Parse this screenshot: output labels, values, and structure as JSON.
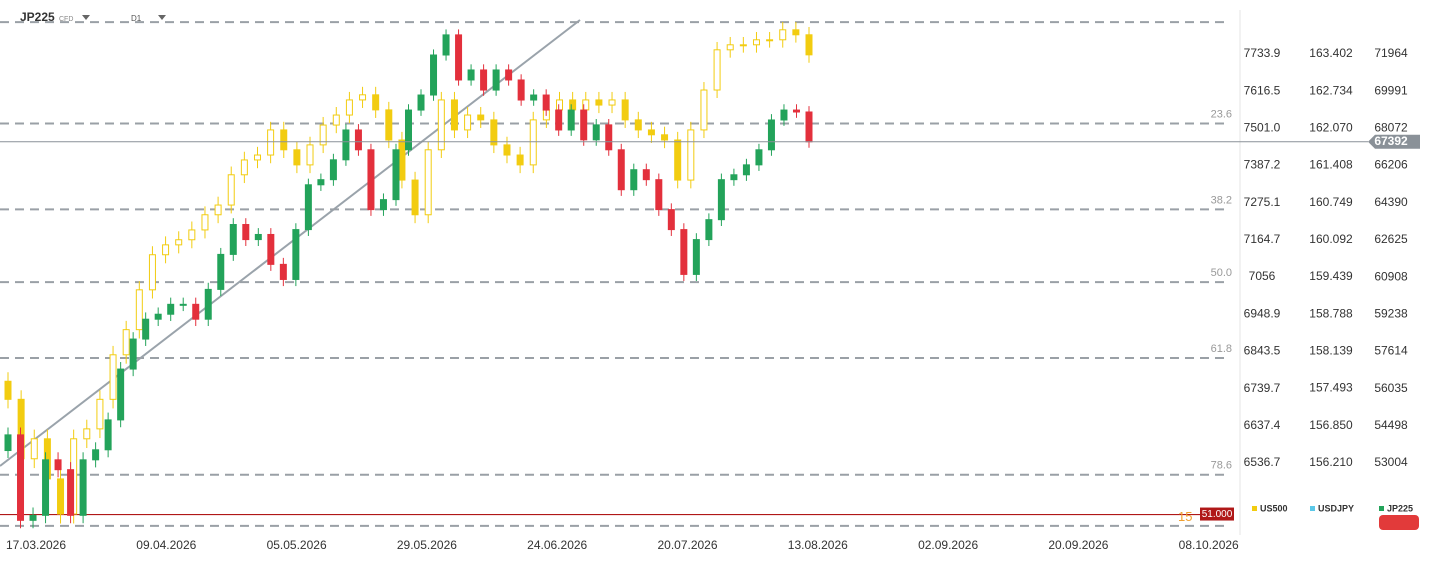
{
  "chart_data": {
    "type": "candlestick",
    "symbol": "JP225",
    "market": "CFD",
    "timeframe": "D1",
    "log_scale": true,
    "x_labels": [
      "17.03.2026",
      "09.04.2026",
      "05.05.2026",
      "29.05.2026",
      "24.06.2026",
      "20.07.2026",
      "13.08.2026",
      "02.09.2026",
      "20.09.2026",
      "08.10.2026"
    ],
    "ylim": [
      6359,
      7849
    ],
    "yticks": [
      7733.9,
      7616.5,
      {
        "value": 7501,
        "label": "7501.0"
      },
      7387.2,
      7275.1,
      7164.7,
      7056,
      6948.9,
      6843.5,
      6739.7,
      6637.4,
      6536.7
    ],
    "y2lim": [
      155.06,
      164.05
    ],
    "y2ticks": [
      163.402,
      162.734,
      {
        "value": 162.07,
        "label": "162.070"
      },
      161.408,
      160.749,
      160.092,
      159.439,
      158.788,
      158.139,
      157.493,
      {
        "value": 156.85,
        "label": "156.850"
      },
      {
        "value": 156.21,
        "label": "156.210"
      }
    ],
    "y3lim": [
      50414,
      73927
    ],
    "y3ticks": [
      71964,
      69991,
      68072,
      66206,
      64390,
      62625,
      60908,
      59238,
      57614,
      56035,
      54498,
      53004
    ],
    "y2_series": {
      "name": "USDJPY",
      "color": "#5bc8e8"
    },
    "series": [
      {
        "name": "US500",
        "color": "#f2cc10",
        "axis": "y",
        "open": [
          6760,
          6710,
          6548,
          6602,
          6494,
          6401,
          6602,
          6629,
          6710,
          6834,
          6905,
          7019,
          7121,
          7150,
          7165,
          7194,
          7239,
          7268,
          7359,
          7404,
          7419,
          7496,
          7435,
          7389,
          7450,
          7511,
          7542,
          7589,
          7605,
          7558,
          7465,
          7343,
          7239,
          7435,
          7589,
          7496,
          7542,
          7527,
          7450,
          7419,
          7389,
          7527,
          7558,
          7589,
          7558,
          7589,
          7573,
          7589,
          7527,
          7496,
          7481,
          7465,
          7343,
          7496,
          7620,
          7747,
          7763,
          7763,
          7779,
          7779,
          7811,
          7795
        ],
        "high": [
          6785,
          6735,
          6627,
          6627,
          6519,
          6627,
          6654,
          6735,
          6859,
          6930,
          7044,
          7146,
          7175,
          7190,
          7219,
          7264,
          7293,
          7384,
          7429,
          7444,
          7521,
          7521,
          7460,
          7475,
          7536,
          7567,
          7614,
          7630,
          7630,
          7583,
          7490,
          7368,
          7460,
          7614,
          7614,
          7567,
          7567,
          7552,
          7475,
          7444,
          7552,
          7583,
          7614,
          7614,
          7614,
          7614,
          7614,
          7614,
          7552,
          7521,
          7506,
          7490,
          7521,
          7645,
          7772,
          7788,
          7788,
          7804,
          7804,
          7836,
          7836,
          7820
        ],
        "low": [
          6685,
          6523,
          6523,
          6469,
          6376,
          6376,
          6577,
          6604,
          6685,
          6809,
          6880,
          6994,
          7096,
          7125,
          7140,
          7169,
          7214,
          7243,
          7334,
          7379,
          7394,
          7410,
          7364,
          7364,
          7425,
          7486,
          7517,
          7564,
          7533,
          7440,
          7318,
          7214,
          7214,
          7410,
          7471,
          7471,
          7502,
          7425,
          7394,
          7364,
          7364,
          7502,
          7533,
          7533,
          7533,
          7548,
          7548,
          7502,
          7471,
          7456,
          7440,
          7318,
          7318,
          7471,
          7595,
          7722,
          7738,
          7738,
          7754,
          7754,
          7770,
          7706
        ],
        "close": [
          6710,
          6548,
          6602,
          6494,
          6401,
          6602,
          6629,
          6710,
          6834,
          6905,
          7019,
          7121,
          7150,
          7165,
          7194,
          7239,
          7268,
          7359,
          7404,
          7419,
          7496,
          7435,
          7389,
          7450,
          7511,
          7542,
          7589,
          7605,
          7558,
          7465,
          7343,
          7239,
          7435,
          7589,
          7496,
          7542,
          7527,
          7450,
          7419,
          7389,
          7527,
          7558,
          7589,
          7558,
          7589,
          7573,
          7589,
          7527,
          7496,
          7481,
          7465,
          7343,
          7496,
          7620,
          7747,
          7763,
          7763,
          7779,
          7779,
          7811,
          7795,
          7731
        ]
      },
      {
        "name": "JP225",
        "color": "#23a35a",
        "down_color": "#e3303c",
        "axis": "y3",
        "open": [
          53500,
          54130,
          50780,
          50970,
          53130,
          52740,
          50970,
          53130,
          53530,
          54740,
          56860,
          58150,
          59020,
          59240,
          59680,
          59680,
          59020,
          60350,
          61950,
          63350,
          62640,
          62880,
          61490,
          60800,
          63110,
          65260,
          65510,
          66490,
          67990,
          66990,
          64060,
          64540,
          66990,
          69010,
          69790,
          71910,
          73000,
          70580,
          71110,
          70050,
          71110,
          70580,
          69530,
          69790,
          69010,
          67990,
          69010,
          67490,
          68250,
          66990,
          65020,
          66000,
          65510,
          64060,
          63110,
          61030,
          62640,
          63580,
          65510,
          65750,
          66240,
          66990,
          68500,
          69010,
          68910
        ],
        "high": [
          54430,
          54430,
          51270,
          53430,
          53430,
          53040,
          53430,
          53830,
          55040,
          57160,
          58450,
          59320,
          59540,
          59980,
          59980,
          59980,
          60650,
          62250,
          63650,
          63650,
          63180,
          63180,
          61790,
          63410,
          65560,
          65810,
          66790,
          68290,
          68290,
          67290,
          64840,
          67290,
          69310,
          70090,
          72210,
          73300,
          73300,
          71410,
          71410,
          71410,
          71410,
          70880,
          70090,
          70090,
          69310,
          69310,
          69310,
          68550,
          68550,
          67290,
          66300,
          66300,
          65810,
          64360,
          63410,
          62940,
          63880,
          65810,
          66050,
          66540,
          67290,
          68800,
          69310,
          69310,
          69210
        ],
        "low": [
          53200,
          50480,
          50480,
          50670,
          52440,
          50670,
          50670,
          52830,
          53230,
          54440,
          56560,
          57850,
          58720,
          58940,
          59380,
          58720,
          58720,
          60050,
          61650,
          62340,
          62340,
          61190,
          60500,
          60500,
          62810,
          64960,
          65210,
          66190,
          66690,
          63760,
          63760,
          64240,
          66690,
          68710,
          69490,
          71610,
          70280,
          70280,
          69750,
          69750,
          70280,
          69230,
          69230,
          68710,
          67690,
          67690,
          67190,
          67190,
          66690,
          64720,
          64720,
          65210,
          63760,
          62810,
          60730,
          60730,
          62340,
          63280,
          65210,
          65450,
          65940,
          66690,
          68200,
          68610,
          67092
        ],
        "close": [
          54130,
          50780,
          50970,
          53130,
          52740,
          50970,
          53130,
          53530,
          54740,
          56860,
          58150,
          59020,
          59240,
          59680,
          59680,
          59020,
          60350,
          61950,
          63350,
          62640,
          62880,
          61490,
          60800,
          63110,
          65260,
          65510,
          66490,
          67990,
          66990,
          64060,
          64540,
          66990,
          69010,
          69790,
          71910,
          73000,
          70580,
          71110,
          70050,
          71110,
          70580,
          69530,
          69790,
          69010,
          67990,
          69010,
          67490,
          68250,
          66990,
          65020,
          66000,
          65510,
          64060,
          63110,
          61030,
          62640,
          63580,
          65510,
          65750,
          66240,
          66990,
          68500,
          69010,
          68910,
          67392
        ]
      }
    ],
    "fib_levels": [
      73700,
      68320,
      64070,
      60680,
      57330,
      52540,
      50570
    ],
    "fib_labels": [
      null,
      "23.6",
      "38.2",
      "50.0",
      "61.8",
      "78.6",
      null
    ],
    "alert": {
      "value": 51000,
      "label": "51.000",
      "prefix": "15"
    }
  }
}
